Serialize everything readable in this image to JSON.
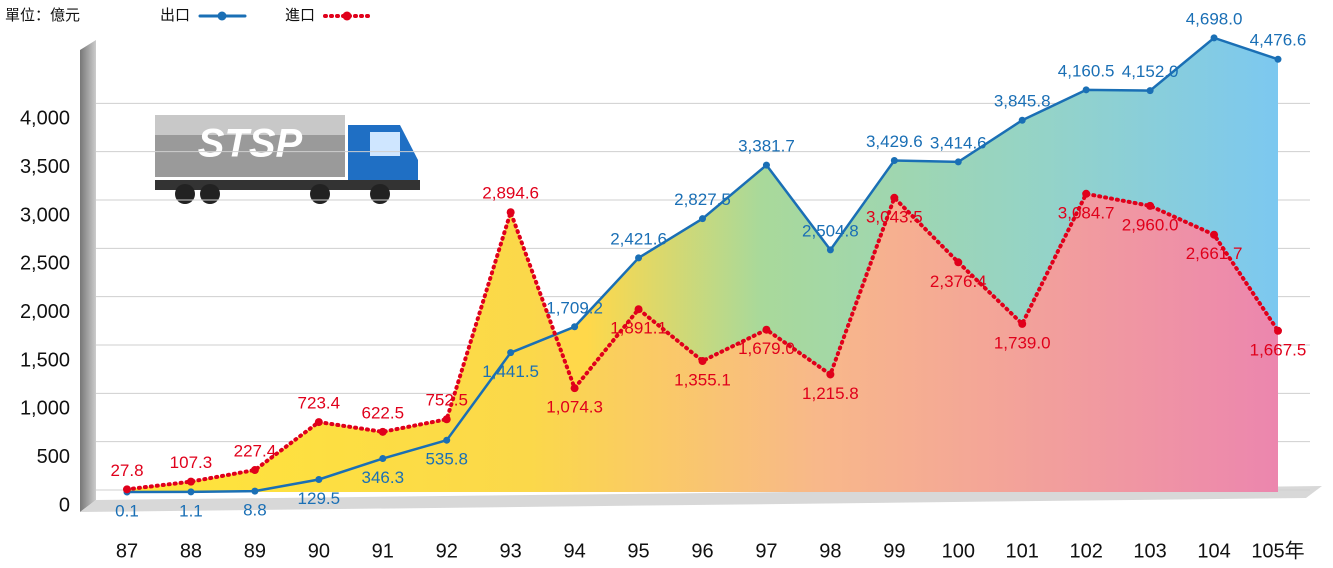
{
  "chart_data": {
    "type": "line",
    "unit": "單位：億元",
    "logo": "STSP",
    "categories": [
      "87",
      "88",
      "89",
      "90",
      "91",
      "92",
      "93",
      "94",
      "95",
      "96",
      "97",
      "98",
      "99",
      "100",
      "101",
      "102",
      "103",
      "104",
      "105年"
    ],
    "series": [
      {
        "name": "出口",
        "color": "#1a6fb5",
        "values": [
          0.1,
          1.1,
          8.8,
          129.5,
          346.3,
          535.8,
          1441.5,
          1709.2,
          2421.6,
          2827.5,
          3381.7,
          2504.8,
          3429.6,
          3414.6,
          3845.8,
          4160.5,
          4152.0,
          4698.0,
          4476.6
        ],
        "value_labels": [
          "0.1",
          "1.1",
          "8.8",
          "129.5",
          "346.3",
          "535.8",
          "1,441.5",
          "1,709.2",
          "2,421.6",
          "2,827.5",
          "3,381.7",
          "2,504.8",
          "3,429.6",
          "3,414.6",
          "3,845.8",
          "4,160.5",
          "4,152.0",
          "4,698.0",
          "4,476.6"
        ]
      },
      {
        "name": "進口",
        "color": "#e0001b",
        "values": [
          27.8,
          107.3,
          227.4,
          723.4,
          622.5,
          752.5,
          2894.6,
          1074.3,
          1891.1,
          1355.1,
          1679.0,
          1215.8,
          3043.5,
          2376.4,
          1739.0,
          3084.7,
          2960.0,
          2661.7,
          1667.5
        ],
        "value_labels": [
          "27.8",
          "107.3",
          "227.4",
          "723.4",
          "622.5",
          "752.5",
          "2,894.6",
          "1,074.3",
          "1,891.1",
          "1,355.1",
          "1,679.0",
          "1,215.8",
          "3,043.5",
          "2,376.4",
          "1,739.0",
          "3,084.7",
          "2,960.0",
          "2,661.7",
          "1,667.5"
        ]
      }
    ],
    "ylim": [
      0,
      4800
    ],
    "yticks": [
      0,
      500,
      {
        "value": 1000,
        "label": "1,000"
      },
      {
        "value": 1500,
        "label": "1,500"
      },
      {
        "value": 2000,
        "label": "2,000"
      },
      {
        "value": 2500,
        "label": "2,500"
      },
      {
        "value": 3000,
        "label": "3,000"
      },
      {
        "value": 3500,
        "label": "3,500"
      },
      {
        "value": 4000,
        "label": "4,000"
      }
    ],
    "grid": true
  }
}
